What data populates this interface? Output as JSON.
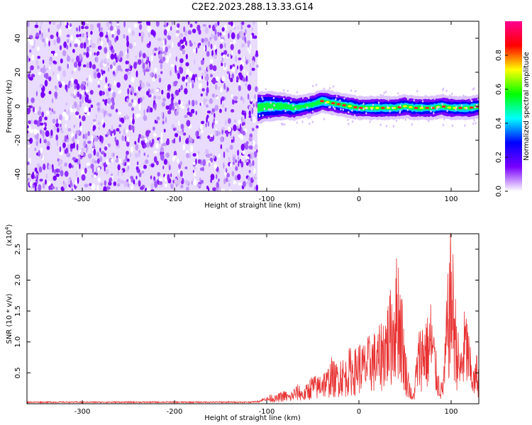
{
  "title": "C2E2.2023.288.13.33.G14",
  "chart_data": [
    {
      "type": "heatmap",
      "xlabel": "Height of straight line (km)",
      "ylabel": "Frequency (Hz)",
      "xlim": [
        -360,
        130
      ],
      "ylim": [
        -50,
        50
      ],
      "x_ticks": [
        -300,
        -200,
        -100,
        0,
        100
      ],
      "y_ticks": [
        -40,
        -20,
        0,
        20,
        40
      ],
      "x_tick_labels": [
        "-300",
        "-200",
        "-100",
        "0",
        "100"
      ],
      "y_tick_labels": [
        "-40",
        "-20",
        "0",
        "20",
        "40"
      ],
      "noise_region_x": [
        -360,
        -110
      ],
      "signal_ridge": {
        "x": [
          -110,
          -100,
          -90,
          -80,
          -70,
          -60,
          -50,
          -40,
          -30,
          -20,
          -10,
          0,
          10,
          20,
          30,
          40,
          50,
          60,
          70,
          80,
          90,
          100,
          110,
          120,
          130
        ],
        "freq": [
          -1,
          0,
          0,
          0,
          -1,
          0,
          1,
          3,
          2,
          1,
          0,
          -1,
          -1,
          -1,
          -1,
          -1,
          0,
          -1,
          -1,
          -1,
          0,
          -1,
          -1,
          -1,
          0
        ]
      },
      "colorbar": {
        "label": "Normalized spectral amplitude",
        "range": [
          0.0,
          1.0
        ],
        "ticks": [
          0.0,
          0.2,
          0.4,
          0.6,
          0.8
        ],
        "tick_labels": [
          "0.0",
          "0.2",
          "0.4",
          "0.6",
          "0.8"
        ],
        "colors": [
          "#ffffff",
          "#7a00ff",
          "#0000ff",
          "#00ffff",
          "#00ff00",
          "#ffff00",
          "#ff0000",
          "#ff0090"
        ]
      }
    },
    {
      "type": "line",
      "xlabel": "Height of straight line (km)",
      "ylabel": "SNR (10 * v/v)",
      "y_scale_label": "(x10",
      "y_scale_exp": "4",
      "y_scale_close": ")",
      "xlim": [
        -360,
        130
      ],
      "ylim": [
        0,
        2.75
      ],
      "x_ticks": [
        -300,
        -200,
        -100,
        0,
        100
      ],
      "x_tick_labels": [
        "-300",
        "-200",
        "-100",
        "0",
        "100"
      ],
      "y_ticks": [
        0.5,
        1.0,
        1.5,
        2.0,
        2.5
      ],
      "y_tick_labels": [
        "0.5",
        "1.0",
        "1.5",
        "2.0",
        "2.5"
      ],
      "line_color": "#e83030",
      "series": [
        {
          "x": [
            -360,
            -340,
            -320,
            -300,
            -280,
            -260,
            -240,
            -220,
            -200,
            -180,
            -160,
            -140,
            -120,
            -110,
            -100,
            -95,
            -90,
            -85,
            -80,
            -75,
            -70,
            -65,
            -60,
            -55,
            -50,
            -45,
            -40,
            -35,
            -30,
            -25,
            -20,
            -15,
            -10,
            -5,
            0,
            5,
            10,
            15,
            20,
            25,
            30,
            35,
            40,
            42,
            45,
            48,
            50,
            55,
            58,
            60,
            62,
            65,
            68,
            70,
            72,
            75,
            78,
            80,
            83,
            85,
            88,
            90,
            93,
            95,
            98,
            100,
            102,
            105,
            108,
            110,
            113,
            115,
            118,
            120,
            123,
            125,
            128,
            130
          ],
          "y": [
            0.03,
            0.03,
            0.03,
            0.03,
            0.03,
            0.03,
            0.03,
            0.03,
            0.03,
            0.03,
            0.03,
            0.03,
            0.03,
            0.04,
            0.1,
            0.15,
            0.12,
            0.18,
            0.2,
            0.15,
            0.25,
            0.3,
            0.2,
            0.35,
            0.45,
            0.4,
            0.55,
            0.5,
            0.7,
            0.6,
            0.75,
            0.65,
            0.85,
            0.8,
            0.95,
            0.9,
            1.0,
            1.1,
            1.05,
            1.3,
            1.5,
            1.75,
            2.1,
            2.4,
            2.0,
            1.4,
            0.9,
            0.4,
            0.1,
            0.3,
            0.7,
            1.1,
            1.3,
            1.25,
            1.4,
            1.3,
            1.6,
            1.35,
            0.9,
            0.6,
            0.4,
            0.3,
            0.8,
            1.6,
            2.3,
            2.7,
            2.3,
            1.6,
            1.0,
            0.8,
            1.2,
            1.5,
            1.3,
            0.9,
            0.7,
            0.5,
            0.8,
            0.6
          ]
        }
      ]
    }
  ]
}
